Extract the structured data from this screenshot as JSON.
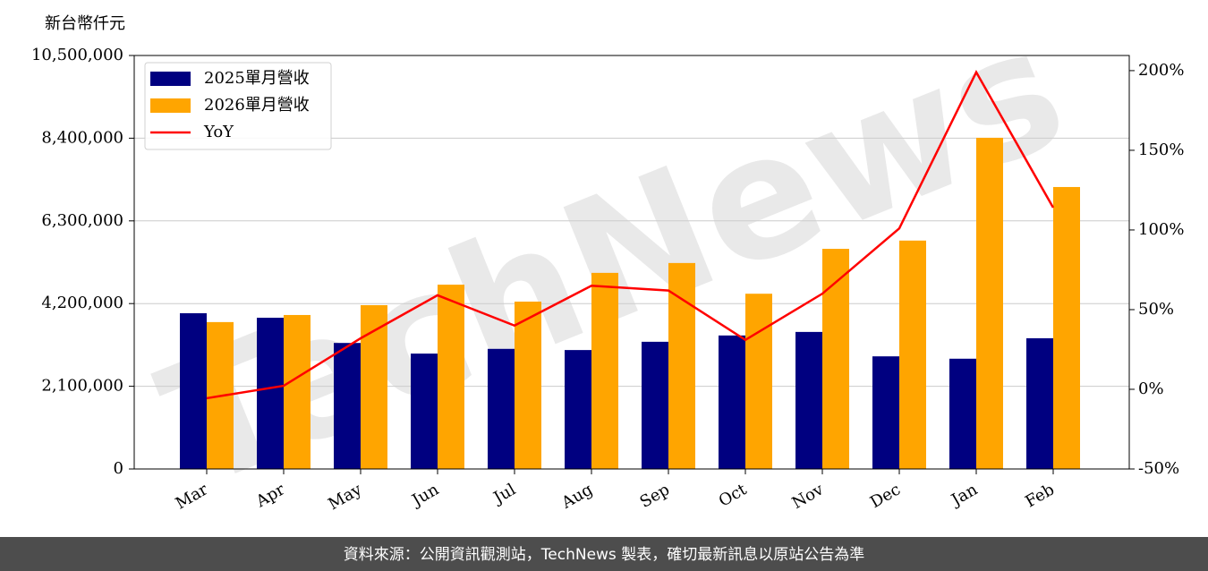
{
  "chart_data": {
    "type": "bar_line",
    "y_label": "新台幣仟元",
    "watermark": "TechNews",
    "footer": "資料來源：公開資訊觀測站，TechNews 製表，確切最新訊息以原站公告為準",
    "categories": [
      "Mar",
      "Apr",
      "May",
      "Jun",
      "Jul",
      "Aug",
      "Sep",
      "Oct",
      "Nov",
      "Dec",
      "Jan",
      "Feb"
    ],
    "series": [
      {
        "name": "2025單月營收",
        "type": "bar",
        "color": "#000080",
        "values": [
          3955000,
          3840000,
          3200000,
          2930000,
          3050000,
          3020000,
          3230000,
          3390000,
          3480000,
          2860000,
          2800000,
          3320000
        ]
      },
      {
        "name": "2026單月營收",
        "type": "bar",
        "color": "#ffa500",
        "values": [
          3730000,
          3910000,
          4160000,
          4680000,
          4250000,
          4980000,
          5230000,
          4450000,
          5590000,
          5800000,
          8410000,
          7160000
        ]
      },
      {
        "name": "YoY",
        "type": "line",
        "axis": "y2",
        "color": "#ff0000",
        "values": [
          -5.6,
          2.2,
          32,
          59,
          40,
          65,
          62,
          31,
          60,
          101,
          199,
          114
        ]
      }
    ],
    "ylim": [
      0,
      10500000
    ],
    "yticks": [
      0,
      {
        "value": 2100000,
        "label": "2,100,000"
      },
      {
        "value": 4200000,
        "label": "4,200,000"
      },
      {
        "value": 6300000,
        "label": "6,300,000"
      },
      {
        "value": 8400000,
        "label": "8,400,000"
      },
      {
        "value": 10500000,
        "label": "10,500,000"
      }
    ],
    "y2lim": [
      -50,
      209.5
    ],
    "y2ticks": [
      {
        "value": -50,
        "label": "-50%"
      },
      {
        "value": 0,
        "label": "0%"
      },
      {
        "value": 50,
        "label": "50%"
      },
      {
        "value": 100,
        "label": "100%"
      },
      {
        "value": 150,
        "label": "150%"
      },
      {
        "value": 200,
        "label": "200%"
      }
    ],
    "grid": true,
    "legend": "upper left"
  }
}
